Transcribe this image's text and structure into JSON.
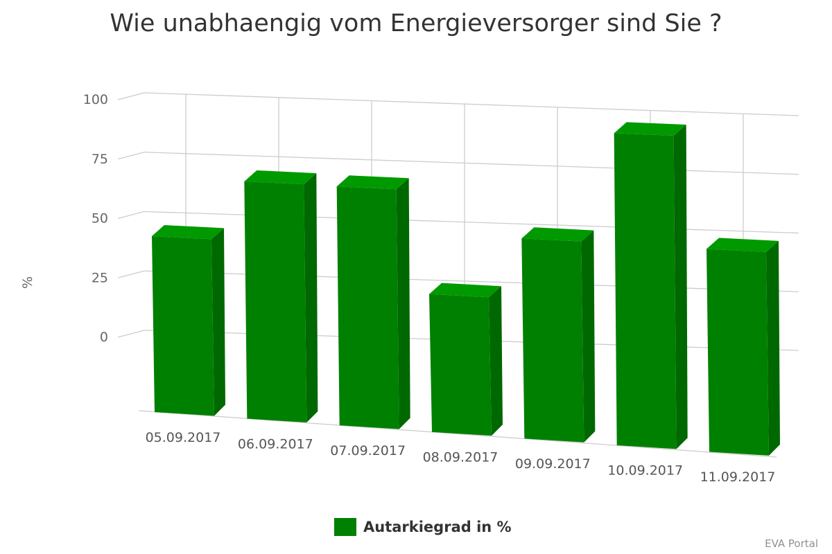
{
  "chart_data": {
    "type": "bar",
    "title": "Wie unabhaengig vom Energieversorger sind Sie ?",
    "xlabel": "",
    "ylabel": "%",
    "categories": [
      "05.09.2017",
      "06.09.2017",
      "07.09.2017",
      "08.09.2017",
      "09.09.2017",
      "10.09.2017",
      "11.09.2017"
    ],
    "series": [
      {
        "name": "Autarkiegrad in %",
        "values": [
          56,
          75,
          75,
          43,
          62,
          96,
          62
        ]
      }
    ],
    "ylim": [
      0,
      100
    ],
    "yticks": [
      0,
      25,
      50,
      75,
      100
    ],
    "grid": true,
    "legend": "bottom-center",
    "colors": {
      "bar": "#008000",
      "bar_side": "#006800",
      "bar_top": "#009a00",
      "grid": "#cccccc"
    }
  },
  "credits": "EVA Portal"
}
